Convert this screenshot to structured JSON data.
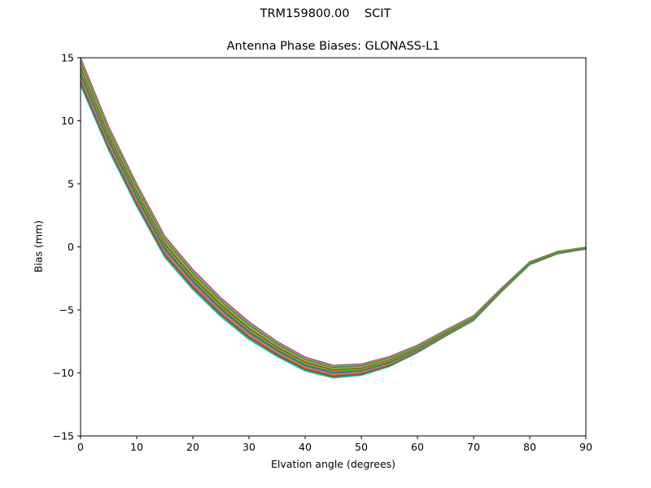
{
  "header": {
    "suptitle": "TRM159800.00    SCIT",
    "title": "Antenna Phase Biases: GLONASS-L1"
  },
  "colors": {
    "background": "#ffffff",
    "axis": "#000000",
    "text": "#000000"
  },
  "chart_data": {
    "type": "line",
    "suptitle": "TRM159800.00    SCIT",
    "title": "Antenna Phase Biases: GLONASS-L1",
    "xlabel": "Elvation angle (degrees)",
    "ylabel": "Bias (mm)",
    "xlim": [
      0,
      90
    ],
    "ylim": [
      -15,
      15
    ],
    "x_ticks": [
      0,
      10,
      20,
      30,
      40,
      50,
      60,
      70,
      80,
      90
    ],
    "x_tick_labels": [
      "0",
      "10",
      "20",
      "30",
      "40",
      "50",
      "60",
      "70",
      "80",
      "90"
    ],
    "y_ticks": [
      15,
      10,
      5,
      0,
      -5,
      -10,
      -15
    ],
    "y_tick_labels": [
      "15",
      "10",
      "5",
      "0",
      "−5",
      "−10",
      "−15"
    ],
    "grid": false,
    "legend_position": "none",
    "x": [
      0,
      5,
      10,
      15,
      20,
      25,
      30,
      35,
      40,
      45,
      50,
      55,
      60,
      65,
      70,
      75,
      80,
      85,
      90
    ],
    "series_mean": [
      13.9,
      8.6,
      4.1,
      0.0,
      -2.6,
      -4.8,
      -6.65,
      -8.1,
      -9.3,
      -9.9,
      -9.75,
      -9.1,
      -8.1,
      -6.85,
      -5.65,
      -3.4,
      -1.3,
      -0.45,
      -0.1
    ],
    "series_halfspread": [
      1.1,
      0.95,
      0.9,
      0.85,
      0.8,
      0.75,
      0.7,
      0.6,
      0.55,
      0.5,
      0.45,
      0.4,
      0.3,
      0.25,
      0.2,
      0.15,
      0.12,
      0.1,
      0.08
    ],
    "series": [
      {
        "offset": 1.0,
        "color": "#8c564b"
      },
      {
        "offset": -1.0,
        "color": "#17becf"
      },
      {
        "offset": 0.85,
        "color": "#e377c2"
      },
      {
        "offset": -0.85,
        "color": "#2ca02c"
      },
      {
        "offset": 0.7,
        "color": "#2ca02c"
      },
      {
        "offset": -0.7,
        "color": "#d62728"
      },
      {
        "offset": 0.55,
        "color": "#7f7f7f"
      },
      {
        "offset": -0.55,
        "color": "#7f7f7f"
      },
      {
        "offset": 0.42,
        "color": "#bcbd22"
      },
      {
        "offset": -0.42,
        "color": "#ff7f0e"
      },
      {
        "offset": 0.3,
        "color": "#2ca02c"
      },
      {
        "offset": -0.3,
        "color": "#9467bd"
      },
      {
        "offset": 0.18,
        "color": "#d62728"
      },
      {
        "offset": -0.18,
        "color": "#1f77b4"
      },
      {
        "offset": 0.05,
        "color": "#bcbd22"
      },
      {
        "offset": -0.05,
        "color": "#2ca02c"
      }
    ]
  }
}
